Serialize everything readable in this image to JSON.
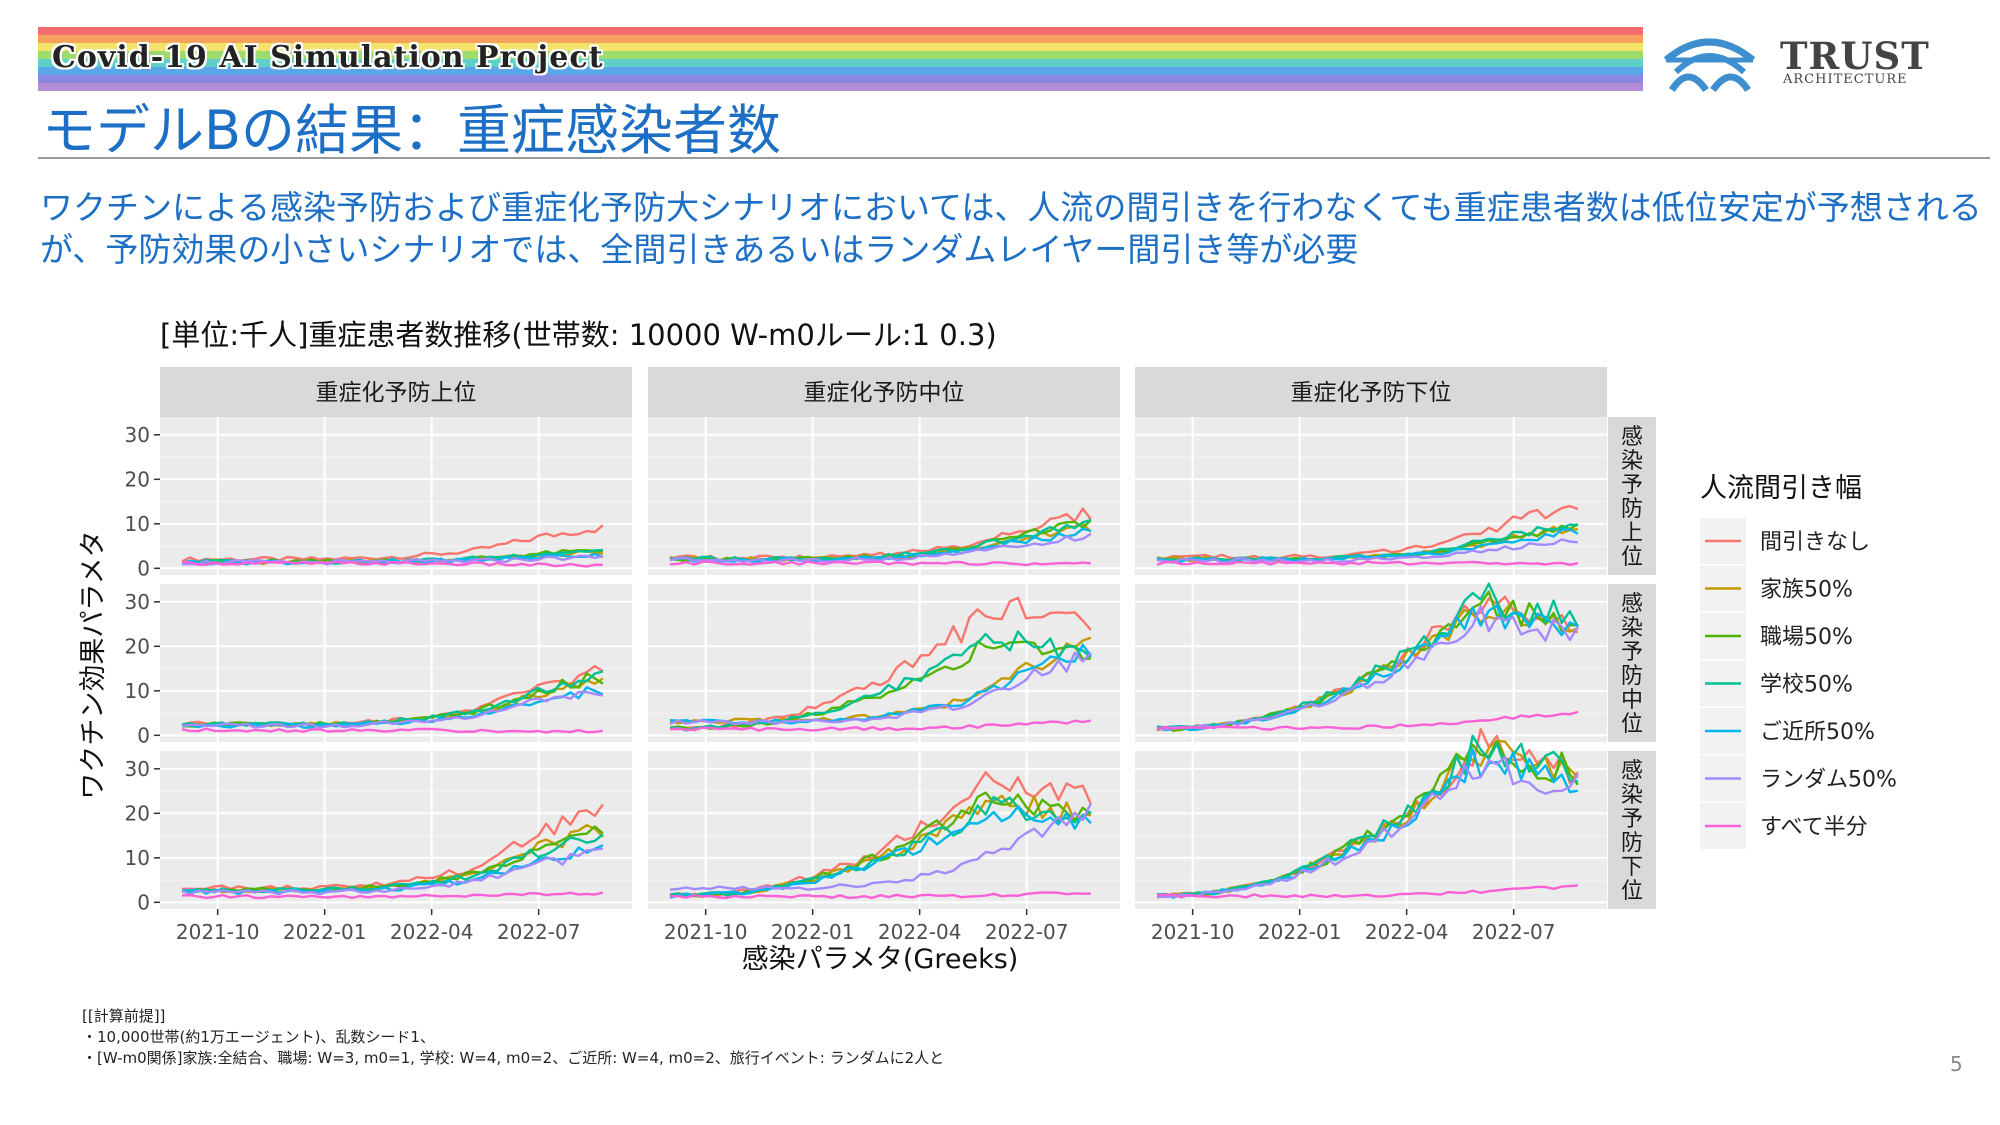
{
  "header": {
    "banner": "Covid-19 AI Simulation Project",
    "title": "モデルBの結果：重症感染者数",
    "logo_text": "TRUST",
    "logo_sub": "ARCHITECTURE",
    "logo_icon": "trust-architecture-arches-icon"
  },
  "summary": "ワクチンによる感染予防および重症化予防大シナリオにおいては、人流の間引きを行わなくても重症患者数は低位安定が予想されるが、予防効果の小さいシナリオでは、全間引きあるいはランダムレイヤー間引き等が必要",
  "footer": {
    "notes": [
      "[[計算前提]]",
      "・10,000世帯(約1万エージェント)、乱数シード1、",
      "・[W-m0関係]家族:全結合、職場: W=3, m0=1, 学校: W=4, m0=2、ご近所: W=4, m0=2、旅行イベント: ランダムに2人と"
    ],
    "page": "5"
  },
  "colors": {
    "rainbow": [
      "#f26d6d",
      "#f7a25c",
      "#f4e36a",
      "#9ddb6a",
      "#5fd0c8",
      "#5aa6e8",
      "#8a87e0",
      "#b48cd8"
    ],
    "title": "#1c6fc4",
    "panel_bg": "#ebebeb",
    "strip_bg": "#d9d9d9",
    "grid": "#ffffff"
  },
  "chart_data": {
    "type": "line",
    "title": "[単位:千人]重症患者数推移(世帯数: 10000 W-m0ルール:1 0.3)",
    "xlabel": "感染パラメタ(Greeks)",
    "ylabel": "ワクチン効果パラメタ",
    "col_facets": [
      "重症化予防上位",
      "重症化予防中位",
      "重症化予防下位"
    ],
    "row_facets": [
      "感染予防上位",
      "感染予防中位",
      "感染予防下位"
    ],
    "x_start": "2021-09",
    "x_end": "2022-08",
    "x_ticks": [
      {
        "label": "2021-10",
        "month": 1
      },
      {
        "label": "2022-01",
        "month": 4
      },
      {
        "label": "2022-04",
        "month": 7
      },
      {
        "label": "2022-07",
        "month": 10
      }
    ],
    "y_ticks": [
      0,
      10,
      20,
      30
    ],
    "ylim": [
      -1.5,
      34
    ],
    "legend": {
      "title": "人流間引き幅",
      "position": "right",
      "series": [
        {
          "name": "間引きなし",
          "color": "#F8766D"
        },
        {
          "name": "家族50%",
          "color": "#C49A00"
        },
        {
          "name": "職場50%",
          "color": "#53B400"
        },
        {
          "name": "学校50%",
          "color": "#00C094"
        },
        {
          "name": "ご近所50%",
          "color": "#00B6EB"
        },
        {
          "name": "ランダム50%",
          "color": "#A58AFF"
        },
        {
          "name": "すべて半分",
          "color": "#FB61D7"
        }
      ]
    },
    "series_points": [
      [
        0,
        1.5
      ],
      [
        2,
        1.5
      ],
      [
        4,
        1.5
      ],
      [
        6,
        2
      ],
      [
        8,
        3
      ],
      [
        10,
        5
      ],
      [
        11.5,
        6
      ],
      [
        12,
        6
      ]
    ],
    "panels": [
      {
        "row": 0,
        "col": 0,
        "peak": [
          9,
          3.5,
          4,
          4,
          3,
          2.5,
          0.6
        ]
      },
      {
        "row": 0,
        "col": 1,
        "peak": [
          12,
          9,
          10,
          10,
          8,
          7,
          1
        ]
      },
      {
        "row": 0,
        "col": 2,
        "peak": [
          14,
          9,
          9,
          10,
          8,
          6,
          1
        ]
      },
      {
        "row": 1,
        "col": 0,
        "peak": [
          14,
          12,
          13,
          13,
          10,
          10,
          0.8
        ]
      },
      {
        "row": 1,
        "col": 1,
        "peak": [
          29,
          20,
          21,
          22,
          19,
          17,
          3
        ]
      },
      {
        "row": 1,
        "col": 2,
        "peak": [
          31,
          29,
          30,
          31,
          28,
          27,
          5
        ]
      },
      {
        "row": 2,
        "col": 0,
        "peak": [
          20,
          16,
          16,
          15,
          12,
          11,
          2
        ]
      },
      {
        "row": 2,
        "col": 1,
        "peak": [
          28,
          23,
          24,
          22,
          21,
          20,
          2
        ]
      },
      {
        "row": 2,
        "col": 2,
        "peak": [
          35,
          34,
          35,
          35,
          32,
          31,
          3.5
        ]
      }
    ]
  }
}
